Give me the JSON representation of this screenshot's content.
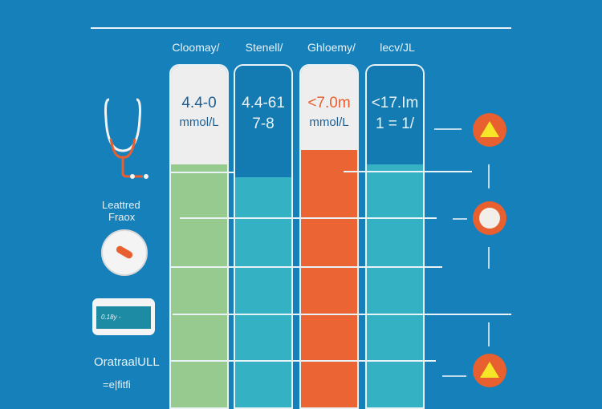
{
  "headers": [
    "Cloomay/",
    "Stenell/",
    "Ghloemy/",
    "lecv/JL"
  ],
  "columns": [
    {
      "value": "4.4-0",
      "unit": "mmol/L",
      "value_color": "#1d5f93",
      "unit_color": "#1d5f93",
      "top_color": "#eeeeee",
      "fill_color": "#96ca8f",
      "fill_level": 0.72
    },
    {
      "value": "4.4-61",
      "unit": "7-8",
      "value_color": "#e8f2f7",
      "unit_color": "#e8f2f7",
      "top_color": "#137bb2",
      "fill_color": "#35b1c4",
      "fill_level": 0.68
    },
    {
      "value": "<7.0m",
      "unit": "mmol/L",
      "value_color": "#e8602f",
      "unit_color": "#1d5f93",
      "top_color": "#eeeeee",
      "fill_color": "#ea6434",
      "fill_level": 0.76
    },
    {
      "value": "<17.Im",
      "unit": "1 = 1/",
      "value_color": "#e8f2f7",
      "unit_color": "#e8f2f7",
      "top_color": "#137bb2",
      "fill_color": "#35b1c4",
      "fill_level": 0.72
    }
  ],
  "left": {
    "risk_label_1": "Leattred",
    "risk_label_2": "Fraox",
    "device_screen": "0.18y -",
    "bottom_label": "OratraalULL",
    "bottom_sub": "=e|fitfi"
  },
  "icons": [
    "stethoscope-icon",
    "pill-icon",
    "glucometer-icon",
    "warning-icon",
    "face-icon",
    "warning-icon"
  ]
}
